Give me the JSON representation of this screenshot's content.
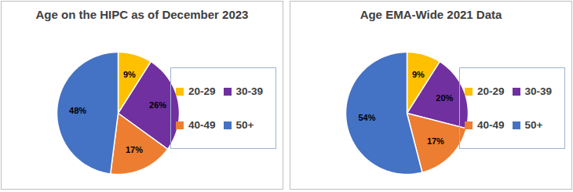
{
  "chart_data": [
    {
      "type": "pie",
      "title": "Age on the HIPC as of December 2023",
      "categories": [
        "20-29",
        "30-39",
        "40-49",
        "50+"
      ],
      "values": [
        9,
        26,
        17,
        48
      ],
      "value_labels": [
        "9%",
        "26%",
        "17%",
        "48%"
      ],
      "colors": [
        "#ffc000",
        "#7030a0",
        "#ed7d31",
        "#4472c4"
      ],
      "data_labels": true,
      "legend": "right"
    },
    {
      "type": "pie",
      "title": "Age EMA-Wide 2021 Data",
      "categories": [
        "20-29",
        "30-39",
        "40-49",
        "50+"
      ],
      "values": [
        9,
        20,
        17,
        54
      ],
      "value_labels": [
        "9%",
        "20%",
        "17%",
        "54%"
      ],
      "colors": [
        "#ffc000",
        "#7030a0",
        "#ed7d31",
        "#4472c4"
      ],
      "data_labels": true,
      "legend": "right"
    }
  ]
}
